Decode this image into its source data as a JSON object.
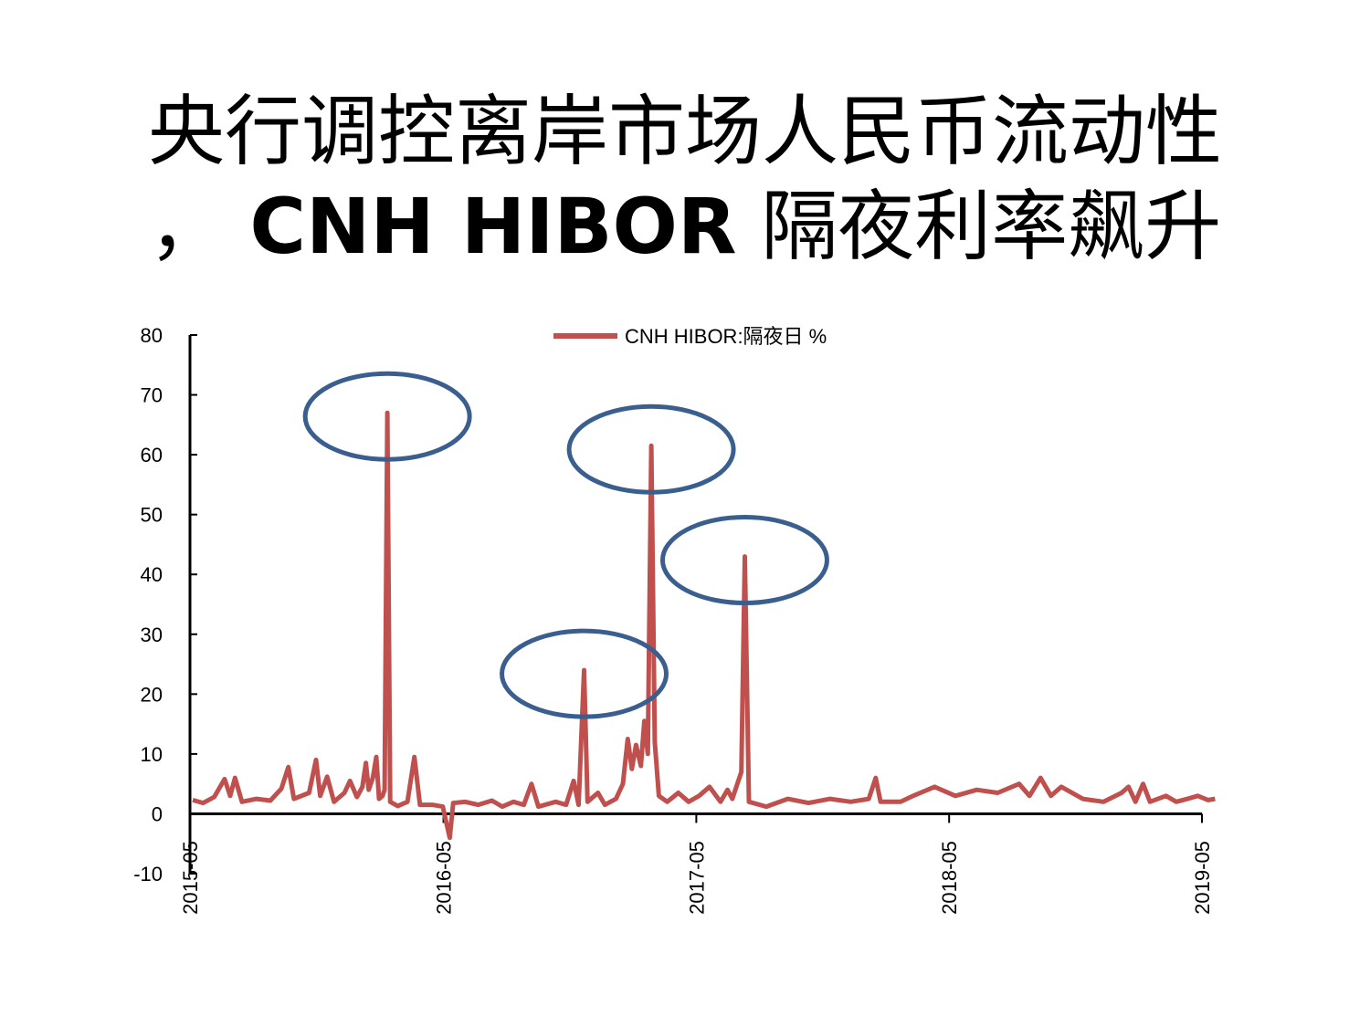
{
  "slide": {
    "title_line1": "央行调控离岸市场人民币流动性",
    "title_line2_prefix": "，",
    "title_line2_latin": "CNH HIBOR",
    "title_line2_cn": "隔夜利率飙升"
  },
  "chart_data": {
    "type": "line",
    "legend": "CNH HIBOR:隔夜日 %",
    "legend_placement": "top-center",
    "grid": false,
    "x_tick_labels": [
      "2015-05",
      "2016-05",
      "2017-05",
      "2018-05",
      "2019-05"
    ],
    "y_tick_labels": [
      "80",
      "70",
      "60",
      "50",
      "40",
      "30",
      "20",
      "10",
      "0",
      "-10"
    ],
    "ylim": [
      -10,
      80
    ],
    "xlim": [
      "2015-05",
      "2019-05"
    ],
    "colors": {
      "series": "#c0504d",
      "annotation_circle": "#3a5f8f"
    },
    "series": [
      {
        "name": "CNH HIBOR:隔夜日 %",
        "points": [
          [
            "2015-05-05",
            2.3
          ],
          [
            "2015-05-20",
            1.8
          ],
          [
            "2015-06-05",
            2.8
          ],
          [
            "2015-06-20",
            5.8
          ],
          [
            "2015-06-28",
            3.0
          ],
          [
            "2015-07-05",
            6.0
          ],
          [
            "2015-07-15",
            2.0
          ],
          [
            "2015-08-05",
            2.5
          ],
          [
            "2015-08-25",
            2.2
          ],
          [
            "2015-09-10",
            4.2
          ],
          [
            "2015-09-20",
            7.8
          ],
          [
            "2015-09-28",
            2.5
          ],
          [
            "2015-10-20",
            3.5
          ],
          [
            "2015-10-30",
            9.0
          ],
          [
            "2015-11-05",
            3.0
          ],
          [
            "2015-11-15",
            6.2
          ],
          [
            "2015-11-25",
            2.0
          ],
          [
            "2015-12-10",
            3.5
          ],
          [
            "2015-12-18",
            5.5
          ],
          [
            "2015-12-28",
            2.8
          ],
          [
            "2016-01-05",
            4.5
          ],
          [
            "2016-01-10",
            8.5
          ],
          [
            "2016-01-14",
            4.0
          ],
          [
            "2016-01-20",
            6.0
          ],
          [
            "2016-01-25",
            9.5
          ],
          [
            "2016-01-29",
            2.5
          ],
          [
            "2016-02-03",
            3.0
          ],
          [
            "2016-02-06",
            4.0
          ],
          [
            "2016-02-10",
            67.0
          ],
          [
            "2016-02-14",
            2.0
          ],
          [
            "2016-02-25",
            1.3
          ],
          [
            "2016-03-10",
            2.0
          ],
          [
            "2016-03-20",
            9.5
          ],
          [
            "2016-03-28",
            1.5
          ],
          [
            "2016-04-15",
            1.5
          ],
          [
            "2016-04-30",
            1.2
          ],
          [
            "2016-05-10",
            -4.0
          ],
          [
            "2016-05-15",
            1.8
          ],
          [
            "2016-06-01",
            2.0
          ],
          [
            "2016-06-20",
            1.5
          ],
          [
            "2016-07-10",
            2.2
          ],
          [
            "2016-07-25",
            1.2
          ],
          [
            "2016-08-10",
            2.0
          ],
          [
            "2016-08-25",
            1.5
          ],
          [
            "2016-09-05",
            5.0
          ],
          [
            "2016-09-15",
            1.2
          ],
          [
            "2016-10-10",
            2.0
          ],
          [
            "2016-10-25",
            1.5
          ],
          [
            "2016-11-05",
            5.5
          ],
          [
            "2016-11-12",
            1.5
          ],
          [
            "2016-11-20",
            24.0
          ],
          [
            "2016-11-25",
            2.0
          ],
          [
            "2016-12-10",
            3.5
          ],
          [
            "2016-12-20",
            1.5
          ],
          [
            "2017-01-05",
            2.5
          ],
          [
            "2017-01-15",
            5.0
          ],
          [
            "2017-01-22",
            12.5
          ],
          [
            "2017-01-28",
            7.5
          ],
          [
            "2017-02-03",
            11.5
          ],
          [
            "2017-02-10",
            8.0
          ],
          [
            "2017-02-15",
            15.5
          ],
          [
            "2017-02-20",
            10.0
          ],
          [
            "2017-02-25",
            61.5
          ],
          [
            "2017-03-02",
            12.0
          ],
          [
            "2017-03-08",
            3.0
          ],
          [
            "2017-03-20",
            2.0
          ],
          [
            "2017-04-05",
            3.5
          ],
          [
            "2017-04-20",
            2.0
          ],
          [
            "2017-05-05",
            3.0
          ],
          [
            "2017-05-20",
            4.5
          ],
          [
            "2017-06-05",
            2.0
          ],
          [
            "2017-06-15",
            4.0
          ],
          [
            "2017-06-22",
            2.5
          ],
          [
            "2017-07-05",
            7.0
          ],
          [
            "2017-07-10",
            43.0
          ],
          [
            "2017-07-16",
            2.0
          ],
          [
            "2017-08-10",
            1.2
          ],
          [
            "2017-09-10",
            2.5
          ],
          [
            "2017-10-10",
            1.8
          ],
          [
            "2017-11-10",
            2.5
          ],
          [
            "2017-12-10",
            2.0
          ],
          [
            "2018-01-05",
            2.5
          ],
          [
            "2018-01-15",
            6.0
          ],
          [
            "2018-01-22",
            2.0
          ],
          [
            "2018-02-20",
            2.0
          ],
          [
            "2018-03-10",
            3.0
          ],
          [
            "2018-04-10",
            4.5
          ],
          [
            "2018-05-10",
            3.0
          ],
          [
            "2018-06-10",
            4.0
          ],
          [
            "2018-07-10",
            3.5
          ],
          [
            "2018-08-10",
            5.0
          ],
          [
            "2018-08-25",
            3.0
          ],
          [
            "2018-09-10",
            6.0
          ],
          [
            "2018-09-25",
            3.0
          ],
          [
            "2018-10-10",
            4.5
          ],
          [
            "2018-11-10",
            2.5
          ],
          [
            "2018-12-10",
            2.0
          ],
          [
            "2019-01-05",
            3.5
          ],
          [
            "2019-01-15",
            4.5
          ],
          [
            "2019-01-25",
            2.0
          ],
          [
            "2019-02-05",
            5.0
          ],
          [
            "2019-02-15",
            2.0
          ],
          [
            "2019-03-10",
            3.0
          ],
          [
            "2019-03-25",
            2.0
          ],
          [
            "2019-04-10",
            2.5
          ],
          [
            "2019-04-25",
            3.0
          ],
          [
            "2019-05-10",
            2.3
          ],
          [
            "2019-05-20",
            2.5
          ]
        ]
      }
    ],
    "annotations": [
      {
        "shape": "ellipse",
        "center": [
          "2016-02-10",
          67.0
        ]
      },
      {
        "shape": "ellipse",
        "center": [
          "2016-11-20",
          24.0
        ]
      },
      {
        "shape": "ellipse",
        "center": [
          "2017-02-25",
          61.5
        ]
      },
      {
        "shape": "ellipse",
        "center": [
          "2017-07-10",
          43.0
        ]
      }
    ]
  }
}
